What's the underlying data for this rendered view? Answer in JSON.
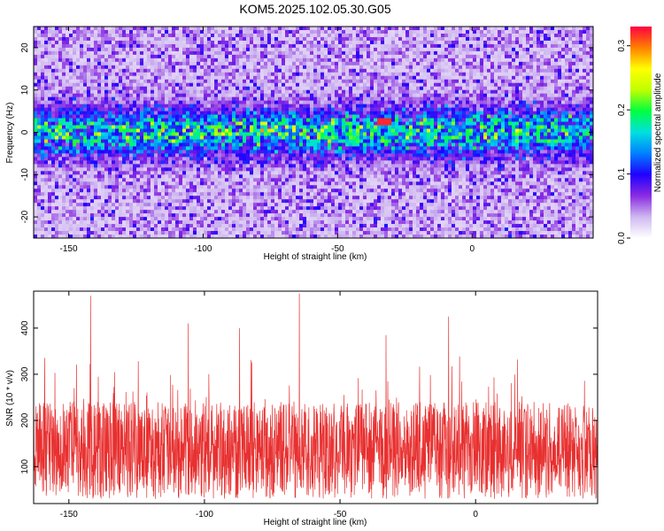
{
  "title": "KOM5.2025.102.05.30.G05",
  "chart_data": [
    {
      "type": "heatmap",
      "xlabel": "Height of straight line (km)",
      "ylabel": "Frequency (Hz)",
      "xlim": [
        -163,
        45
      ],
      "ylim": [
        -25,
        25
      ],
      "x_ticks": [
        -150,
        -100,
        -50,
        0
      ],
      "y_ticks": [
        -20,
        -10,
        0,
        10,
        20
      ],
      "colorbar": {
        "label": "Normalized spectral amplitude",
        "range": [
          0.0,
          0.33
        ],
        "ticks": [
          0.0,
          0.1,
          0.2,
          0.3
        ],
        "colors": [
          "#ffffff",
          "#cfb8f0",
          "#8a2be2",
          "#2000ff",
          "#0080ff",
          "#00e0e0",
          "#00ff40",
          "#c0ff00",
          "#ffff00",
          "#ff8000",
          "#ff0040"
        ]
      },
      "signal_band": {
        "center_hz": 0,
        "half_width_hz": 5,
        "peak_amplitude": 0.32,
        "peak_x": -33
      },
      "grid": false
    },
    {
      "type": "line",
      "xlabel": "Height of straight line (km)",
      "ylabel": "SNR (10 * v/v)",
      "xlim": [
        -163,
        45
      ],
      "ylim": [
        20,
        480
      ],
      "x_ticks": [
        -150,
        -100,
        -50,
        0
      ],
      "y_ticks": [
        100,
        200,
        300,
        400
      ],
      "series_color": "#e83030",
      "typical_range": [
        60,
        240
      ],
      "max_value": 475,
      "peaks": [
        [
          -142,
          470
        ],
        [
          -65,
          475
        ],
        [
          -106,
          410
        ],
        [
          -87,
          400
        ],
        [
          -10,
          425
        ],
        [
          -33,
          385
        ]
      ],
      "grid": false
    }
  ]
}
